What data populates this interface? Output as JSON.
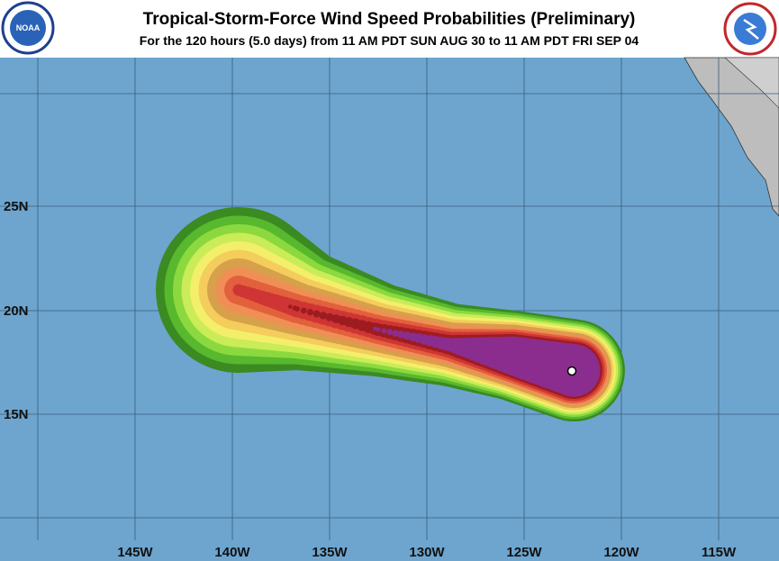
{
  "header": {
    "title": "Tropical-Storm-Force Wind Speed Probabilities (Preliminary)",
    "subtitle": "For the 120 hours (5.0 days) from 11 AM PDT SUN AUG 30 to 11 AM PDT FRI SEP 04",
    "left_logo": "NOAA"
  },
  "map": {
    "lat_labels": [
      "25N",
      "20N",
      "15N"
    ],
    "lon_labels": [
      "145W",
      "140W",
      "135W",
      "130W",
      "125W",
      "120W",
      "115W"
    ]
  }
}
